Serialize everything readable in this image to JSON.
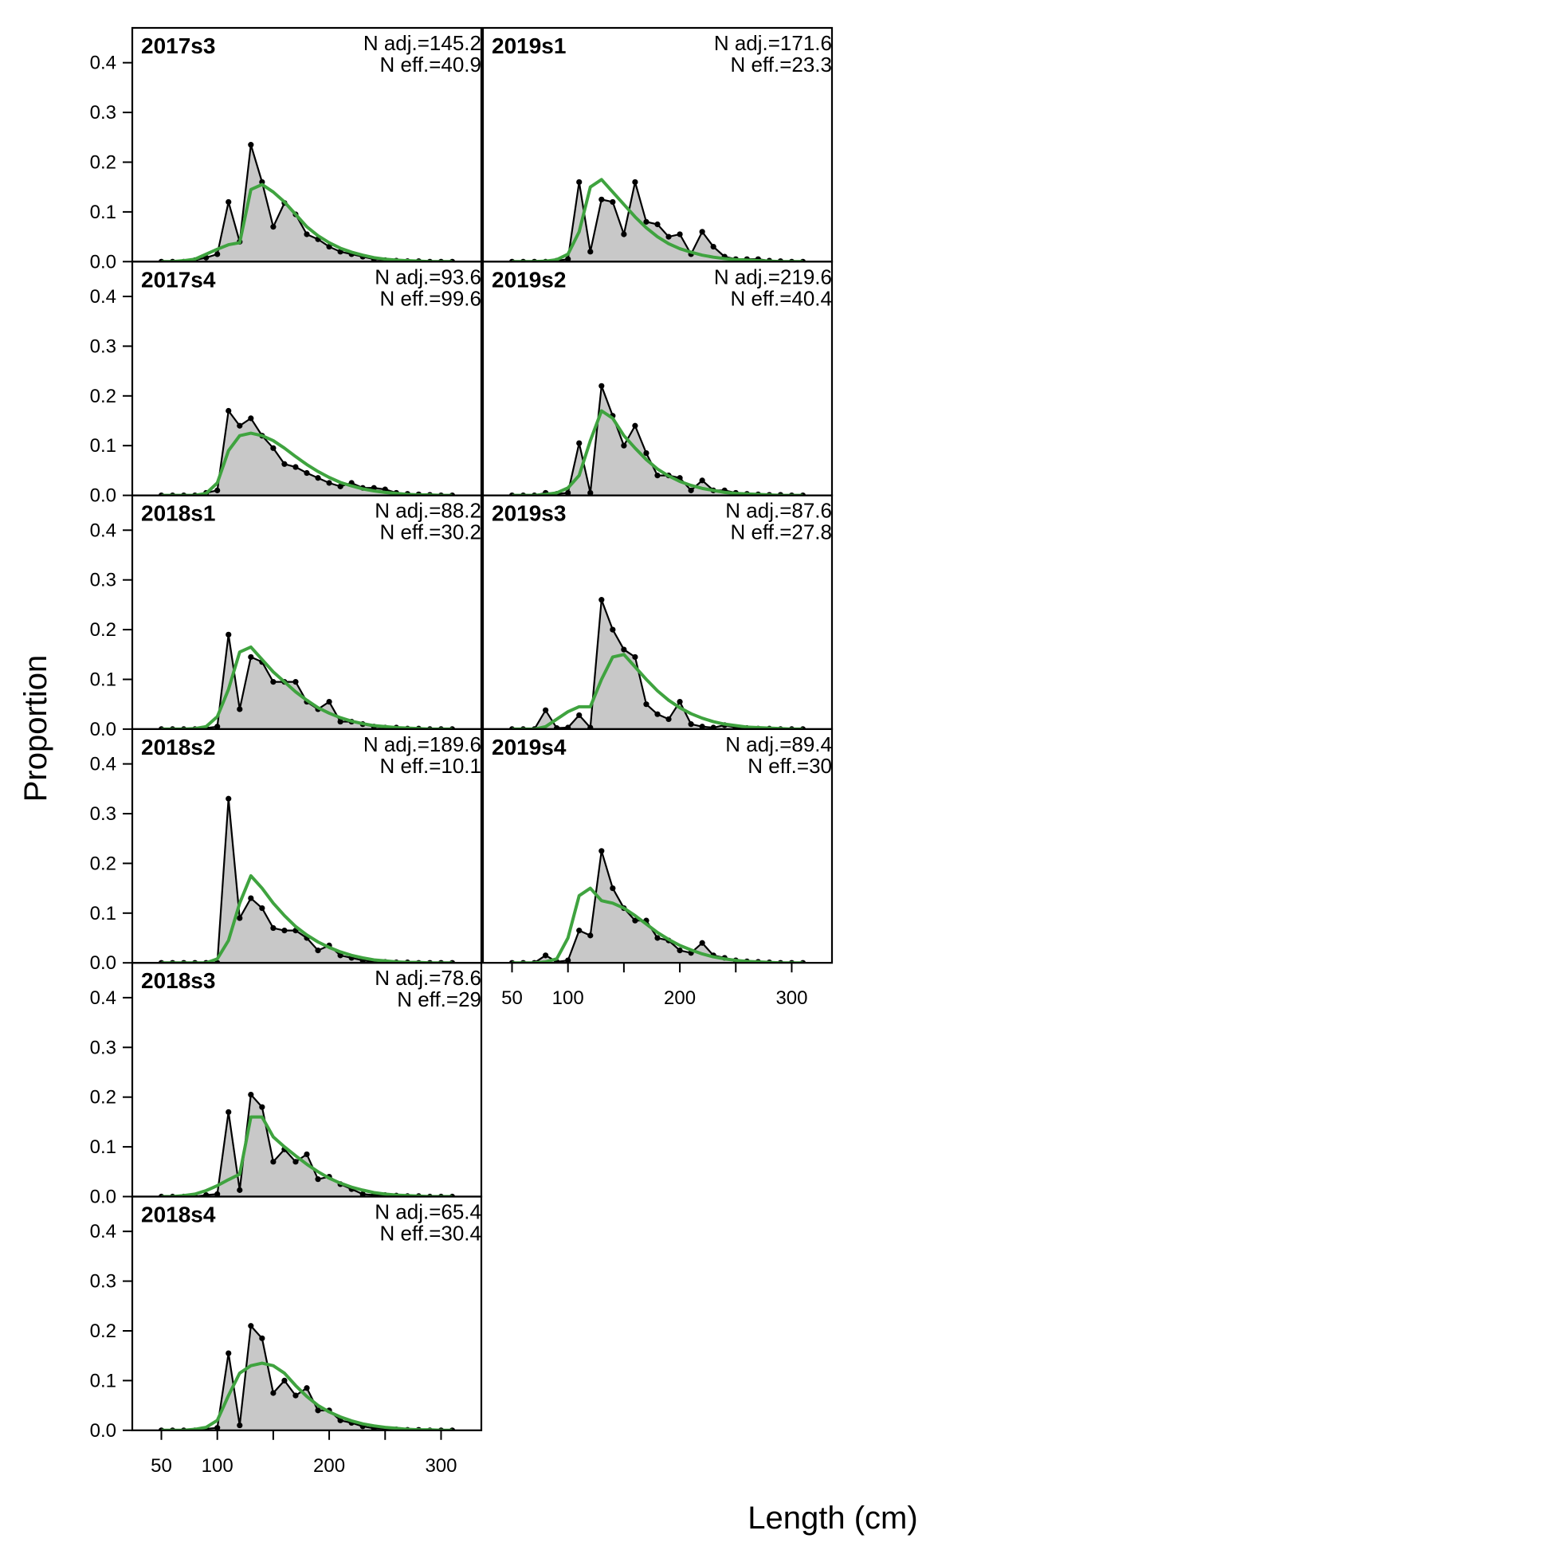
{
  "chart_data": {
    "type": "area",
    "xlabel": "Length (cm)",
    "ylabel": "Proportion",
    "xlim": [
      24,
      336
    ],
    "ylim": [
      0,
      0.47
    ],
    "x_ticks": [
      50,
      100,
      200,
      300
    ],
    "y_ticks": [
      "0.0",
      "0.1",
      "0.2",
      "0.3",
      "0.4"
    ],
    "x": [
      50,
      60,
      70,
      80,
      90,
      100,
      110,
      120,
      130,
      140,
      150,
      160,
      170,
      180,
      190,
      200,
      210,
      220,
      230,
      240,
      250,
      260,
      270,
      280,
      290,
      300,
      310
    ],
    "colors": {
      "observed_fill": "#c8c8c8",
      "observed_line": "#000000",
      "expected_line": "#3fa33f",
      "zero_line": "#b4b4b4"
    },
    "panels": [
      {
        "label": "2017s3",
        "n_adj": "N adj.=145.2",
        "n_eff": "N eff.=40.9",
        "observed": [
          0,
          0,
          0,
          0.003,
          0.008,
          0.015,
          0.12,
          0.04,
          0.235,
          0.16,
          0.07,
          0.118,
          0.095,
          0.055,
          0.045,
          0.03,
          0.02,
          0.015,
          0.01,
          0.005,
          0.003,
          0.002,
          0.001,
          0.001,
          0,
          0,
          0
        ],
        "expected": [
          0,
          0,
          0.002,
          0.005,
          0.015,
          0.025,
          0.034,
          0.038,
          0.145,
          0.155,
          0.14,
          0.12,
          0.095,
          0.07,
          0.052,
          0.038,
          0.027,
          0.019,
          0.013,
          0.008,
          0.005,
          0.003,
          0.002,
          0.001,
          0,
          0,
          0
        ]
      },
      {
        "label": "2017s4",
        "n_adj": "N adj.=93.6",
        "n_eff": "N eff.=99.6",
        "observed": [
          0,
          0,
          0,
          0,
          0.005,
          0.01,
          0.17,
          0.14,
          0.155,
          0.12,
          0.095,
          0.063,
          0.057,
          0.045,
          0.035,
          0.025,
          0.018,
          0.025,
          0.015,
          0.015,
          0.012,
          0.005,
          0.003,
          0.002,
          0.001,
          0,
          0
        ],
        "expected": [
          0,
          0,
          0,
          0,
          0.004,
          0.025,
          0.09,
          0.12,
          0.125,
          0.12,
          0.11,
          0.095,
          0.078,
          0.062,
          0.048,
          0.036,
          0.026,
          0.019,
          0.013,
          0.009,
          0.006,
          0.004,
          0.002,
          0.001,
          0.001,
          0,
          0
        ]
      },
      {
        "label": "2018s1",
        "n_adj": "N adj.=88.2",
        "n_eff": "N eff.=30.2",
        "observed": [
          0,
          0,
          0,
          0,
          0.002,
          0.005,
          0.19,
          0.04,
          0.145,
          0.135,
          0.095,
          0.095,
          0.095,
          0.055,
          0.04,
          0.055,
          0.015,
          0.015,
          0.01,
          0.005,
          0.003,
          0.003,
          0.001,
          0.001,
          0,
          0,
          0
        ],
        "expected": [
          0,
          0,
          0,
          0.001,
          0.005,
          0.025,
          0.08,
          0.155,
          0.165,
          0.14,
          0.115,
          0.095,
          0.075,
          0.058,
          0.043,
          0.032,
          0.023,
          0.016,
          0.011,
          0.007,
          0.005,
          0.003,
          0.002,
          0.001,
          0,
          0,
          0
        ]
      },
      {
        "label": "2018s2",
        "n_adj": "N adj.=189.6",
        "n_eff": "N eff.=10.1",
        "observed": [
          0,
          0,
          0,
          0,
          0,
          0,
          0.33,
          0.09,
          0.13,
          0.11,
          0.07,
          0.065,
          0.065,
          0.05,
          0.025,
          0.035,
          0.015,
          0.01,
          0.005,
          0.002,
          0.002,
          0.001,
          0.001,
          0,
          0,
          0,
          0
        ],
        "expected": [
          0,
          0,
          0,
          0,
          0,
          0.008,
          0.045,
          0.12,
          0.175,
          0.15,
          0.12,
          0.095,
          0.073,
          0.056,
          0.042,
          0.031,
          0.022,
          0.015,
          0.01,
          0.006,
          0.004,
          0.002,
          0.001,
          0.001,
          0,
          0,
          0
        ]
      },
      {
        "label": "2018s3",
        "n_adj": "N adj.=78.6",
        "n_eff": "N eff.=29",
        "observed": [
          0,
          0,
          0,
          0,
          0.003,
          0.005,
          0.17,
          0.013,
          0.205,
          0.18,
          0.07,
          0.095,
          0.07,
          0.085,
          0.035,
          0.04,
          0.025,
          0.015,
          0.005,
          0.003,
          0.003,
          0.002,
          0.001,
          0.001,
          0,
          0,
          0
        ],
        "expected": [
          0,
          0,
          0.002,
          0.005,
          0.012,
          0.022,
          0.034,
          0.045,
          0.16,
          0.16,
          0.12,
          0.1,
          0.082,
          0.065,
          0.05,
          0.037,
          0.027,
          0.019,
          0.013,
          0.008,
          0.005,
          0.003,
          0.002,
          0.001,
          0,
          0,
          0
        ]
      },
      {
        "label": "2018s4",
        "n_adj": "N adj.=65.4",
        "n_eff": "N eff.=30.4",
        "observed": [
          0,
          0,
          0,
          0,
          0.003,
          0.005,
          0.155,
          0.01,
          0.21,
          0.185,
          0.075,
          0.1,
          0.07,
          0.085,
          0.04,
          0.04,
          0.02,
          0.015,
          0.008,
          0.004,
          0.003,
          0.002,
          0.001,
          0.001,
          0,
          0,
          0
        ],
        "expected": [
          0,
          0,
          0,
          0.002,
          0.006,
          0.02,
          0.07,
          0.115,
          0.13,
          0.135,
          0.13,
          0.115,
          0.09,
          0.068,
          0.05,
          0.037,
          0.027,
          0.019,
          0.013,
          0.009,
          0.006,
          0.004,
          0.002,
          0.001,
          0.001,
          0,
          0
        ]
      },
      {
        "label": "2019s1",
        "n_adj": "N adj.=171.6",
        "n_eff": "N eff.=23.3",
        "observed": [
          0,
          0,
          0,
          0,
          0.002,
          0.005,
          0.16,
          0.02,
          0.125,
          0.12,
          0.055,
          0.16,
          0.08,
          0.075,
          0.05,
          0.055,
          0.015,
          0.06,
          0.03,
          0.01,
          0.005,
          0.005,
          0.005,
          0.002,
          0.001,
          0,
          0
        ],
        "expected": [
          0,
          0,
          0,
          0.001,
          0.004,
          0.015,
          0.06,
          0.15,
          0.165,
          0.14,
          0.115,
          0.09,
          0.068,
          0.05,
          0.036,
          0.026,
          0.019,
          0.013,
          0.009,
          0.006,
          0.004,
          0.003,
          0.002,
          0.001,
          0,
          0,
          0
        ]
      },
      {
        "label": "2019s2",
        "n_adj": "N adj.=219.6",
        "n_eff": "N eff.=40.4",
        "observed": [
          0,
          0,
          0,
          0.005,
          0.003,
          0.005,
          0.105,
          0.005,
          0.22,
          0.16,
          0.1,
          0.14,
          0.085,
          0.04,
          0.04,
          0.035,
          0.01,
          0.03,
          0.01,
          0.01,
          0.005,
          0.003,
          0.002,
          0.001,
          0.001,
          0,
          0
        ],
        "expected": [
          0,
          0,
          0,
          0.002,
          0.005,
          0.015,
          0.04,
          0.11,
          0.17,
          0.155,
          0.12,
          0.095,
          0.072,
          0.053,
          0.039,
          0.028,
          0.02,
          0.014,
          0.01,
          0.006,
          0.004,
          0.003,
          0.002,
          0.001,
          0,
          0,
          0
        ]
      },
      {
        "label": "2019s3",
        "n_adj": "N adj.=87.6",
        "n_eff": "N eff.=27.8",
        "observed": [
          0,
          0,
          0,
          0.038,
          0.002,
          0.003,
          0.028,
          0.003,
          0.26,
          0.2,
          0.16,
          0.145,
          0.05,
          0.03,
          0.02,
          0.055,
          0.01,
          0.005,
          0.003,
          0.008,
          0.003,
          0.002,
          0.001,
          0.001,
          0,
          0,
          0
        ],
        "expected": [
          0,
          0,
          0,
          0.005,
          0.02,
          0.035,
          0.045,
          0.045,
          0.1,
          0.145,
          0.15,
          0.125,
          0.1,
          0.077,
          0.058,
          0.043,
          0.031,
          0.022,
          0.015,
          0.01,
          0.007,
          0.004,
          0.003,
          0.002,
          0.001,
          0,
          0
        ]
      },
      {
        "label": "2019s4",
        "n_adj": "N adj.=89.4",
        "n_eff": "N eff.=30",
        "observed": [
          0,
          0,
          0,
          0.015,
          0.002,
          0.005,
          0.065,
          0.055,
          0.225,
          0.15,
          0.11,
          0.085,
          0.085,
          0.05,
          0.045,
          0.025,
          0.02,
          0.04,
          0.015,
          0.01,
          0.005,
          0.003,
          0.002,
          0.001,
          0,
          0,
          0
        ],
        "expected": [
          0,
          0,
          0,
          0.002,
          0.008,
          0.05,
          0.135,
          0.15,
          0.125,
          0.12,
          0.11,
          0.095,
          0.078,
          0.061,
          0.047,
          0.035,
          0.026,
          0.018,
          0.012,
          0.008,
          0.005,
          0.003,
          0.002,
          0.001,
          0,
          0,
          0
        ]
      }
    ]
  }
}
